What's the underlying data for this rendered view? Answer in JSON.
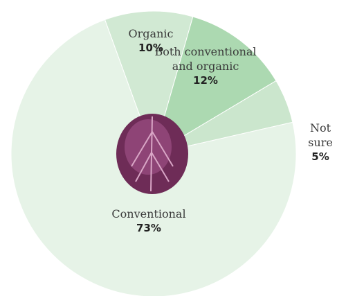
{
  "chart_data": {
    "type": "pie",
    "categories": [
      "Organic",
      "Both conventional and organic",
      "Not sure",
      "Conventional"
    ],
    "values": [
      10,
      12,
      5,
      73
    ],
    "value_labels": [
      "10%",
      "12%",
      "5%",
      "73%"
    ],
    "colors": [
      "#d1e9d3",
      "#acd9b1",
      "#cbe6cd",
      "#e6f3e7"
    ]
  }
}
